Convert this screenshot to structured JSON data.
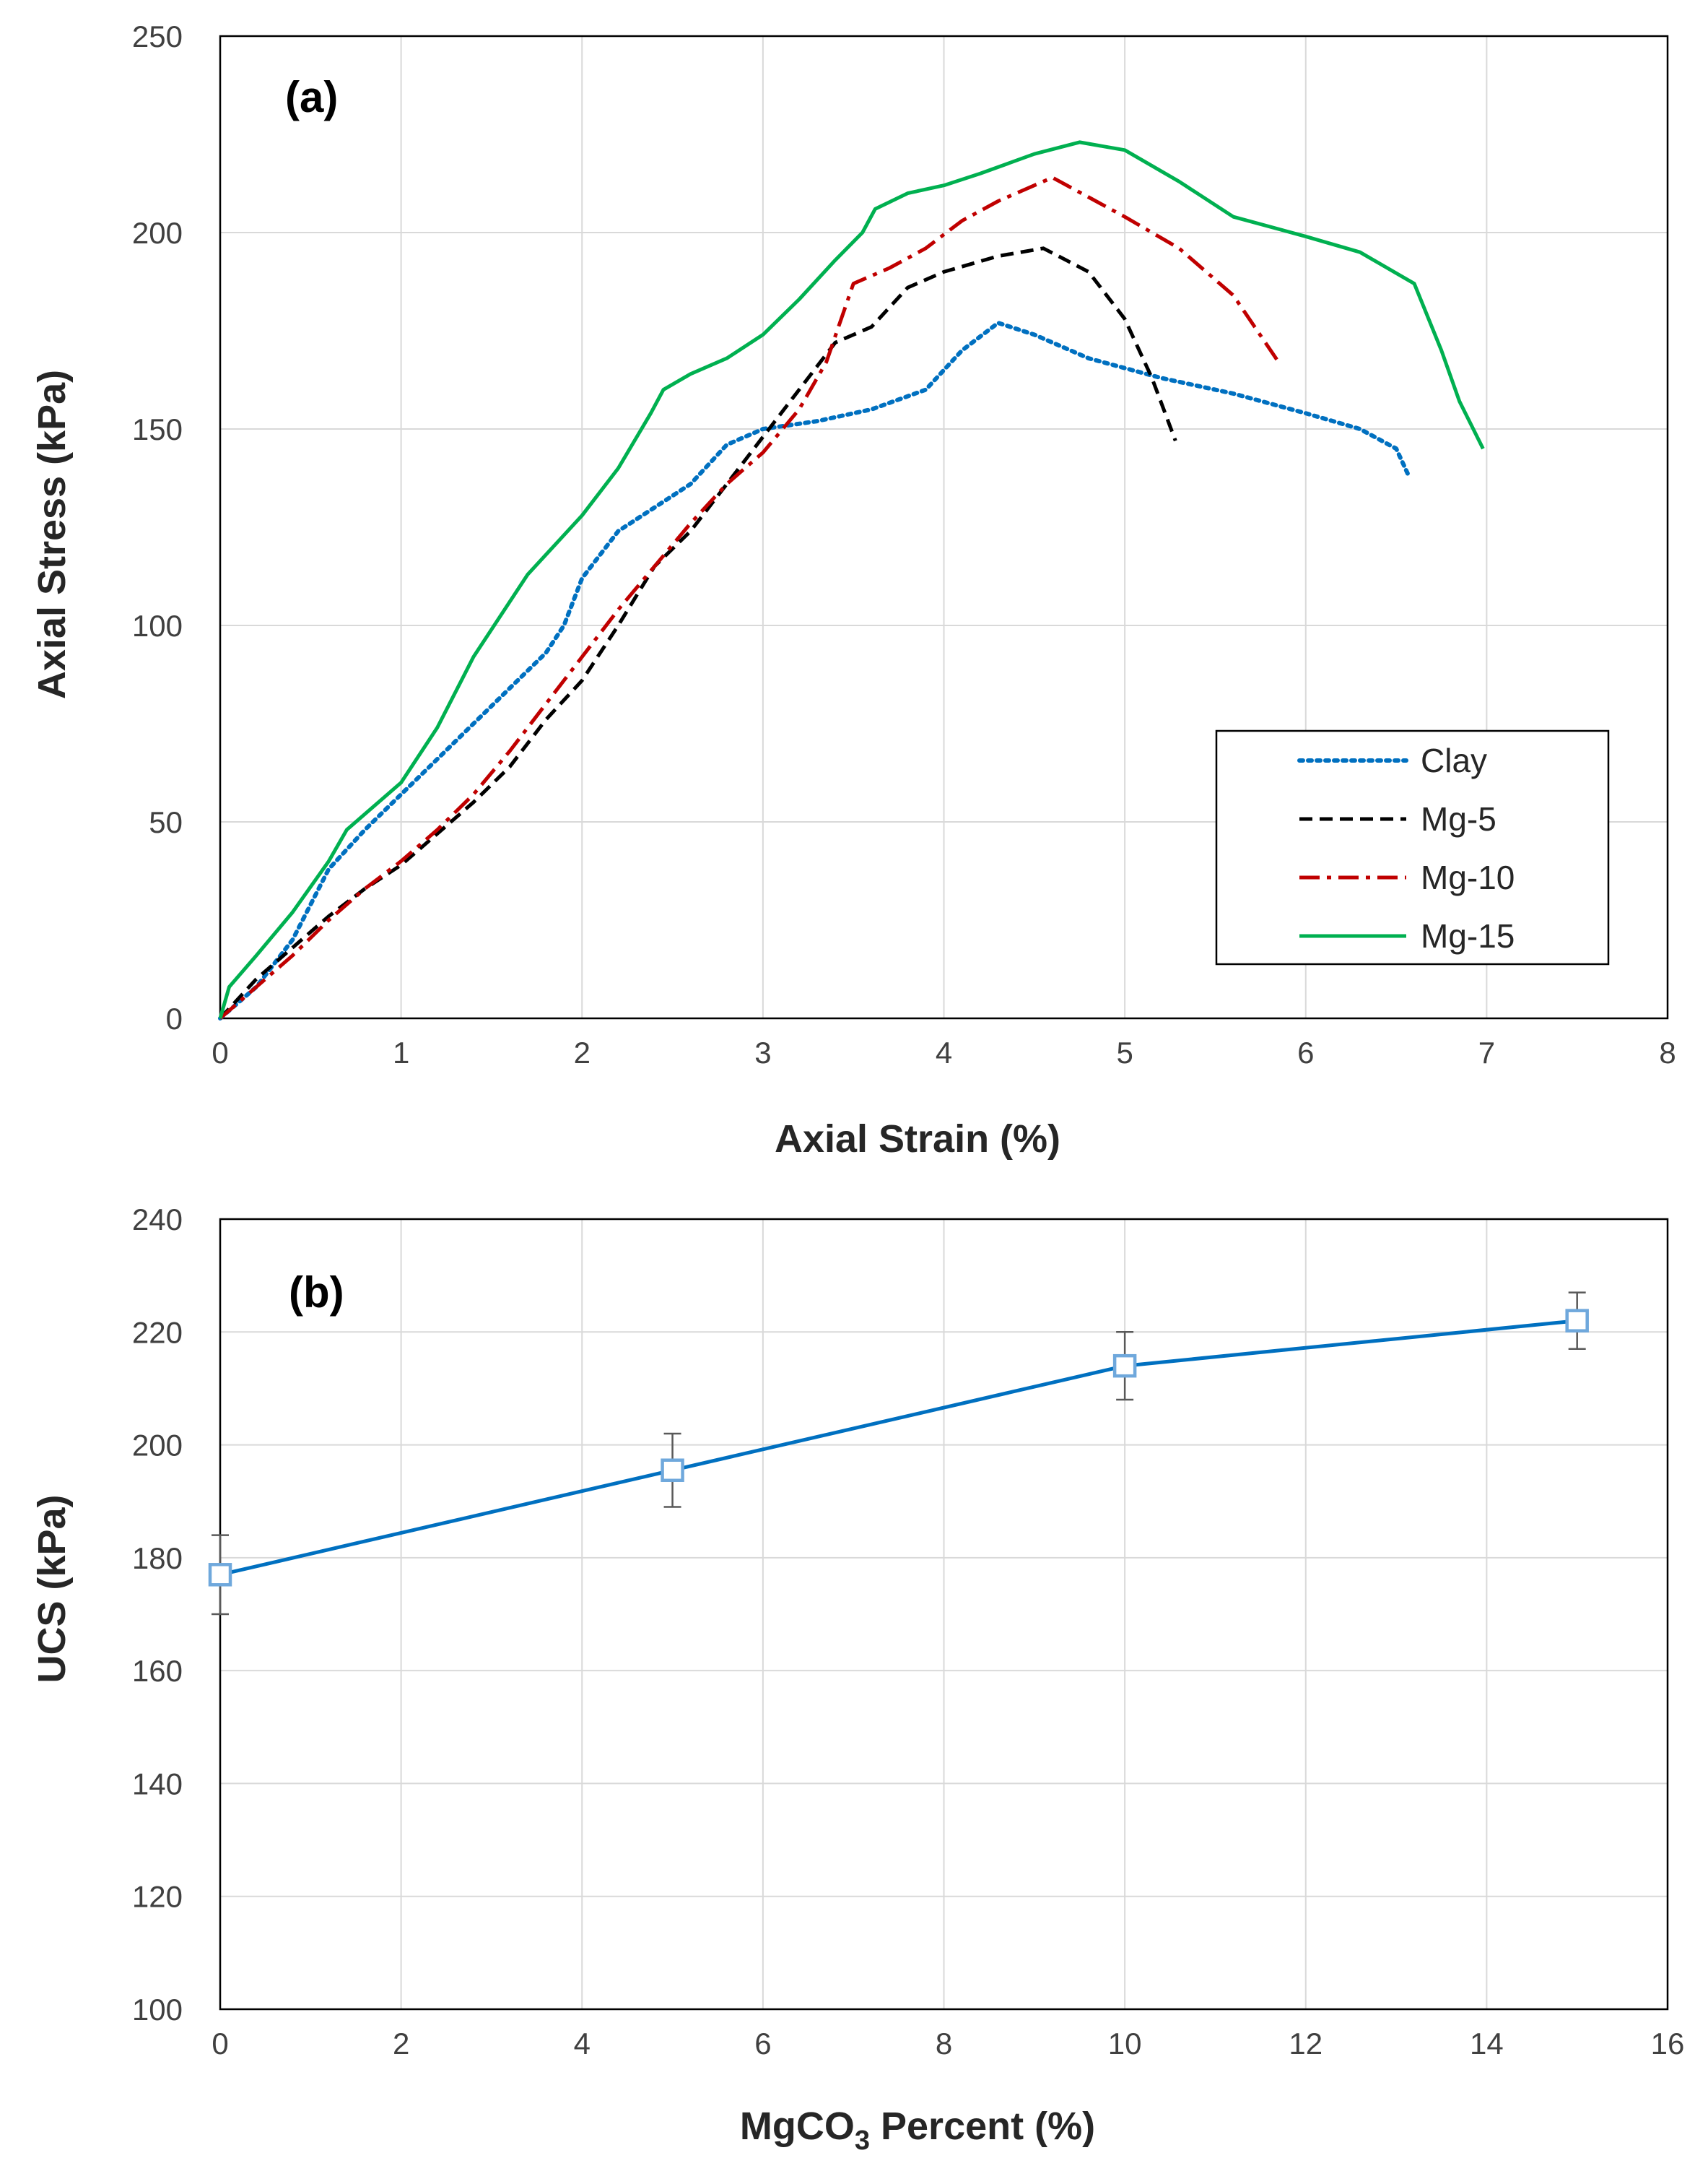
{
  "chart_data": [
    {
      "type": "line",
      "panel_label": "(a)",
      "xlabel": "Axial Strain (%)",
      "ylabel": "Axial Stress (kPa)",
      "xlim": [
        0,
        8
      ],
      "ylim": [
        0,
        250
      ],
      "x_ticks": [
        "0",
        "1",
        "2",
        "3",
        "4",
        "5",
        "6",
        "7",
        "8"
      ],
      "y_ticks": [
        "0",
        "50",
        "100",
        "150",
        "200",
        "250"
      ],
      "grid": true,
      "legend_position": "bottom-right",
      "series": [
        {
          "name": "Clay",
          "color": "#0070c0",
          "style": "dotted",
          "points": [
            [
              0,
              0
            ],
            [
              0.2,
              8
            ],
            [
              0.4,
              20
            ],
            [
              0.6,
              38
            ],
            [
              0.8,
              48
            ],
            [
              1.0,
              57
            ],
            [
              1.2,
              66
            ],
            [
              1.4,
              75
            ],
            [
              1.6,
              84
            ],
            [
              1.8,
              93
            ],
            [
              1.9,
              100
            ],
            [
              2.0,
              112
            ],
            [
              2.2,
              124
            ],
            [
              2.4,
              130
            ],
            [
              2.6,
              136
            ],
            [
              2.8,
              146
            ],
            [
              3.0,
              150
            ],
            [
              3.3,
              152
            ],
            [
              3.6,
              155
            ],
            [
              3.9,
              160
            ],
            [
              4.1,
              170
            ],
            [
              4.3,
              177
            ],
            [
              4.5,
              174
            ],
            [
              4.8,
              168
            ],
            [
              5.2,
              163
            ],
            [
              5.6,
              159
            ],
            [
              6.0,
              154
            ],
            [
              6.3,
              150
            ],
            [
              6.5,
              145
            ],
            [
              6.57,
              138
            ]
          ]
        },
        {
          "name": "Mg-5",
          "color": "#000000",
          "style": "dashed",
          "points": [
            [
              0,
              0
            ],
            [
              0.2,
              10
            ],
            [
              0.4,
              18
            ],
            [
              0.6,
              26
            ],
            [
              0.8,
              33
            ],
            [
              1.0,
              39
            ],
            [
              1.2,
              47
            ],
            [
              1.4,
              55
            ],
            [
              1.6,
              64
            ],
            [
              1.8,
              76
            ],
            [
              2.0,
              86
            ],
            [
              2.2,
              100
            ],
            [
              2.4,
              115
            ],
            [
              2.6,
              124
            ],
            [
              2.8,
              136
            ],
            [
              3.0,
              148
            ],
            [
              3.2,
              160
            ],
            [
              3.4,
              172
            ],
            [
              3.6,
              176
            ],
            [
              3.8,
              186
            ],
            [
              4.0,
              190
            ],
            [
              4.3,
              194
            ],
            [
              4.55,
              196
            ],
            [
              4.8,
              190
            ],
            [
              5.0,
              178
            ],
            [
              5.15,
              163
            ],
            [
              5.28,
              147
            ]
          ]
        },
        {
          "name": "Mg-10",
          "color": "#c00000",
          "style": "dashdot",
          "points": [
            [
              0,
              0
            ],
            [
              0.2,
              8
            ],
            [
              0.4,
              16
            ],
            [
              0.6,
              25
            ],
            [
              0.8,
              33
            ],
            [
              1.0,
              40
            ],
            [
              1.2,
              48
            ],
            [
              1.4,
              57
            ],
            [
              1.6,
              68
            ],
            [
              1.8,
              80
            ],
            [
              2.0,
              92
            ],
            [
              2.2,
              104
            ],
            [
              2.4,
              115
            ],
            [
              2.6,
              126
            ],
            [
              2.8,
              136
            ],
            [
              3.0,
              144
            ],
            [
              3.2,
              155
            ],
            [
              3.35,
              167
            ],
            [
              3.5,
              187
            ],
            [
              3.7,
              191
            ],
            [
              3.9,
              196
            ],
            [
              4.1,
              203
            ],
            [
              4.3,
              208
            ],
            [
              4.5,
              212
            ],
            [
              4.6,
              214
            ],
            [
              4.8,
              209
            ],
            [
              5.0,
              204
            ],
            [
              5.3,
              196
            ],
            [
              5.6,
              184
            ],
            [
              5.85,
              167
            ]
          ]
        },
        {
          "name": "Mg-15",
          "color": "#00b050",
          "style": "solid",
          "points": [
            [
              0,
              0
            ],
            [
              0.05,
              8
            ],
            [
              0.2,
              16
            ],
            [
              0.4,
              27
            ],
            [
              0.6,
              40
            ],
            [
              0.7,
              48
            ],
            [
              1.0,
              60
            ],
            [
              1.2,
              74
            ],
            [
              1.4,
              92
            ],
            [
              1.7,
              113
            ],
            [
              2.0,
              128
            ],
            [
              2.2,
              140
            ],
            [
              2.38,
              154
            ],
            [
              2.45,
              160
            ],
            [
              2.6,
              164
            ],
            [
              2.8,
              168
            ],
            [
              3.0,
              174
            ],
            [
              3.2,
              183
            ],
            [
              3.4,
              193
            ],
            [
              3.55,
              200
            ],
            [
              3.62,
              206
            ],
            [
              3.8,
              210
            ],
            [
              4.0,
              212
            ],
            [
              4.2,
              215
            ],
            [
              4.5,
              220
            ],
            [
              4.75,
              223
            ],
            [
              5.0,
              221
            ],
            [
              5.3,
              213
            ],
            [
              5.6,
              204
            ],
            [
              6.0,
              199
            ],
            [
              6.3,
              195
            ],
            [
              6.6,
              187
            ],
            [
              6.75,
              170
            ],
            [
              6.85,
              157
            ],
            [
              6.98,
              145
            ]
          ]
        }
      ]
    },
    {
      "type": "line",
      "panel_label": "(b)",
      "xlabel_main": "MgCO",
      "xlabel_sub": "3",
      "xlabel_tail": " Percent (%)",
      "ylabel": "UCS (kPa)",
      "xlim": [
        0,
        16
      ],
      "ylim": [
        100,
        240
      ],
      "x_ticks": [
        "0",
        "2",
        "4",
        "6",
        "8",
        "10",
        "12",
        "14",
        "16"
      ],
      "y_ticks": [
        "100",
        "120",
        "140",
        "160",
        "180",
        "200",
        "220",
        "240"
      ],
      "grid": true,
      "series": [
        {
          "name": "UCS",
          "color": "#0070c0",
          "marker": "open-square",
          "x": [
            0,
            5,
            10,
            15
          ],
          "y": [
            177,
            195.5,
            214,
            222
          ],
          "error": [
            7,
            6.5,
            6,
            5
          ]
        }
      ]
    }
  ]
}
